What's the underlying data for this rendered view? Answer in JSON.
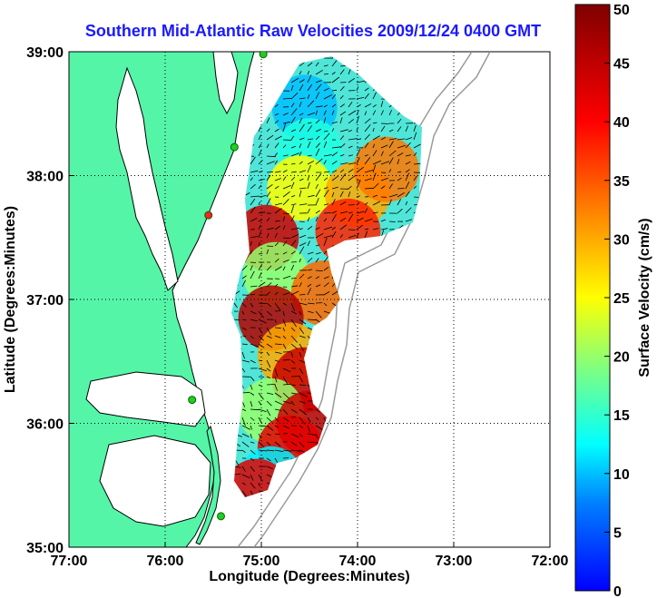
{
  "chart_data": {
    "type": "heatmap",
    "title": "Southern Mid-Atlantic Raw Velocities 2009/12/24 0400 GMT",
    "xlabel": "Longitude (Degrees:Minutes)",
    "ylabel": "Latitude (Degrees:Minutes)",
    "x_ticks": [
      {
        "value": -77,
        "label": "77:00"
      },
      {
        "value": -76,
        "label": "76:00"
      },
      {
        "value": -75,
        "label": "75:00"
      },
      {
        "value": -74,
        "label": "74:00"
      },
      {
        "value": -73,
        "label": "73:00"
      },
      {
        "value": -72,
        "label": "72:00"
      }
    ],
    "y_ticks": [
      {
        "value": 35,
        "label": "35:00"
      },
      {
        "value": 36,
        "label": "36:00"
      },
      {
        "value": 37,
        "label": "37:00"
      },
      {
        "value": 38,
        "label": "38:00"
      },
      {
        "value": 39,
        "label": "39:00"
      }
    ],
    "xlim": [
      -77,
      -72
    ],
    "ylim": [
      35,
      39
    ],
    "grid": "dotted",
    "colorbar": {
      "label": "Surface Velocity (cm/s)",
      "range": [
        0,
        50
      ],
      "ticks": [
        "0",
        "5",
        "10",
        "15",
        "20",
        "25",
        "30",
        "35",
        "40",
        "45",
        "50"
      ],
      "colors": [
        "#0000ff",
        "#0080ff",
        "#00ffff",
        "#80ff80",
        "#ffff00",
        "#ff8000",
        "#ff0000",
        "#800000"
      ]
    },
    "land_color": "#55f5a8",
    "stations": [
      {
        "lon": -74.98,
        "lat": 38.98,
        "type": "site"
      },
      {
        "lon": -75.28,
        "lat": 38.23,
        "type": "site"
      },
      {
        "lon": -75.55,
        "lat": 37.68,
        "type": "site-red"
      },
      {
        "lon": -75.72,
        "lat": 36.19,
        "type": "site"
      },
      {
        "lon": -75.42,
        "lat": 35.25,
        "type": "site"
      }
    ],
    "velocity_regions": [
      {
        "lon": -74.55,
        "lat": 38.55,
        "speed": 10
      },
      {
        "lon": -74.5,
        "lat": 38.2,
        "speed": 14
      },
      {
        "lon": -74.6,
        "lat": 37.9,
        "speed": 25
      },
      {
        "lon": -74.0,
        "lat": 37.85,
        "speed": 30
      },
      {
        "lon": -73.7,
        "lat": 38.05,
        "speed": 33
      },
      {
        "lon": -74.1,
        "lat": 37.55,
        "speed": 38
      },
      {
        "lon": -74.95,
        "lat": 37.5,
        "speed": 44
      },
      {
        "lon": -74.85,
        "lat": 37.2,
        "speed": 20
      },
      {
        "lon": -74.35,
        "lat": 37.05,
        "speed": 34
      },
      {
        "lon": -74.9,
        "lat": 36.85,
        "speed": 46
      },
      {
        "lon": -74.7,
        "lat": 36.55,
        "speed": 30
      },
      {
        "lon": -74.55,
        "lat": 36.35,
        "speed": 44
      },
      {
        "lon": -74.9,
        "lat": 36.1,
        "speed": 20
      },
      {
        "lon": -74.5,
        "lat": 36.0,
        "speed": 44
      },
      {
        "lon": -74.7,
        "lat": 35.8,
        "speed": 42
      },
      {
        "lon": -74.9,
        "lat": 35.55,
        "speed": 12
      },
      {
        "lon": -75.05,
        "lat": 35.45,
        "speed": 42
      }
    ]
  }
}
